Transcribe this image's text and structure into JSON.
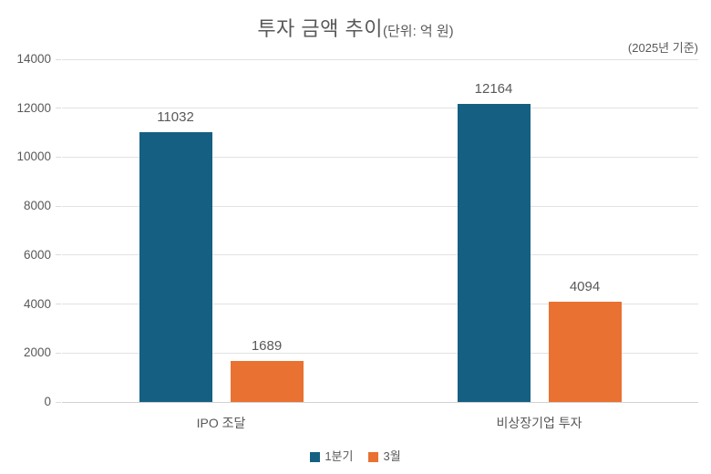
{
  "chart_data": {
    "type": "bar",
    "title": "투자 금액 추이",
    "title_suffix": "(단위: 억 원)",
    "annotation": "(2025년 기준)",
    "categories": [
      "IPO 조달",
      "비상장기업 투자"
    ],
    "series": [
      {
        "name": "1분기",
        "color": "#156082",
        "values": [
          11032,
          12164
        ]
      },
      {
        "name": "3월",
        "color": "#E97132",
        "values": [
          1689,
          4094
        ]
      }
    ],
    "ylabel": "",
    "xlabel": "",
    "ylim": [
      0,
      14000
    ],
    "ytick_step": 2000,
    "grid": true,
    "legend_position": "bottom",
    "colors": {
      "text": "#595959",
      "gridline": "#e2e2e2",
      "axis_line": "#d2d2d2"
    }
  }
}
